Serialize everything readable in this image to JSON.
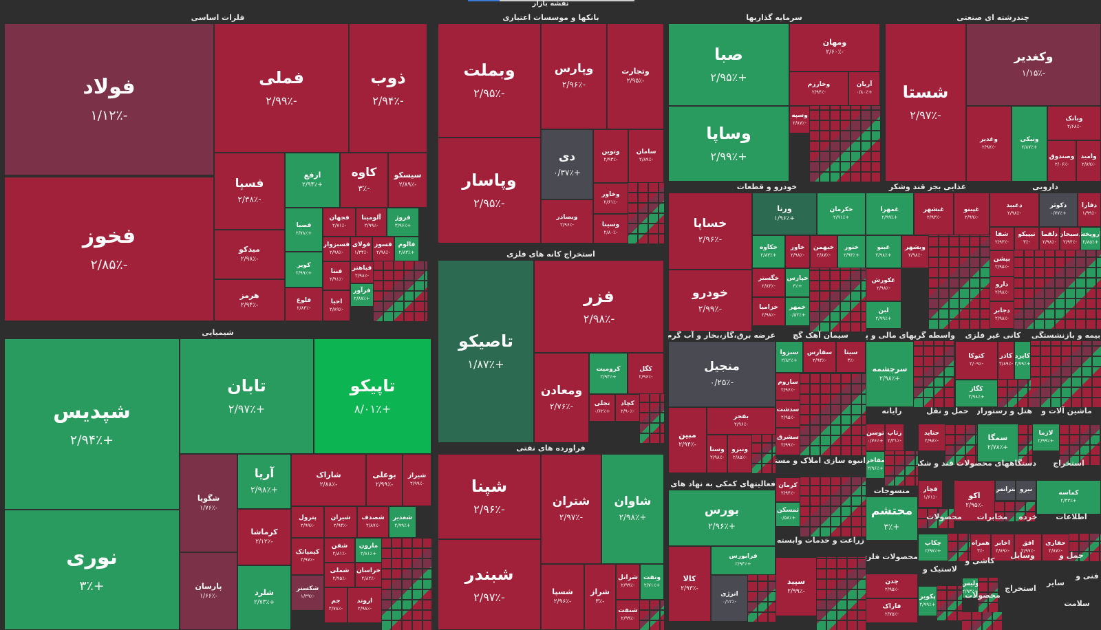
{
  "page_title": "نقشه بازار",
  "colors": {
    "red": "#a2213a",
    "dark_red": "#7b3148",
    "green": "#2a9b5e",
    "bright_green": "#0db552",
    "dark_green": "#2c6b52",
    "gray": "#4a4a52"
  },
  "sectors": {
    "basic_metals": {
      "name": "فلزات اساسی",
      "tiles": [
        {
          "name": "فولاد",
          "pct": "-۱/۱۲٪"
        },
        {
          "name": "فخوز",
          "pct": "-۲/۸۵٪"
        },
        {
          "name": "فملی",
          "pct": "-۲/۹۹٪"
        },
        {
          "name": "ذوب",
          "pct": "-۲/۹۴٪"
        },
        {
          "name": "فسپا",
          "pct": "-۲/۳۸٪"
        },
        {
          "name": "ارفع",
          "pct": "+۲/۹۴٪"
        },
        {
          "name": "کاوه",
          "pct": "-۳٪"
        },
        {
          "name": "سیسکو",
          "pct": "-۲/۸۹٪"
        },
        {
          "name": "میدکو",
          "pct": "-۲/۹۸٪"
        },
        {
          "name": "هرمز",
          "pct": "-۲/۹۴٪"
        },
        {
          "name": "فصبا",
          "pct": "+۲/۷۸٪"
        },
        {
          "name": "فجهان",
          "pct": "-۲/۷۱٪"
        },
        {
          "name": "آلومینا",
          "pct": "-۲/۹۹٪"
        },
        {
          "name": "فروژ",
          "pct": "+۳/۹۶٪"
        },
        {
          "name": "کویر",
          "pct": "+۲/۹۹٪"
        },
        {
          "name": "فسبزوار",
          "pct": "-۲/۹۸٪"
        },
        {
          "name": "فولای",
          "pct": "-۱/۳۴٪"
        },
        {
          "name": "فسوز",
          "pct": "-۲/۹۸٪"
        },
        {
          "name": "فالوم",
          "pct": "+۲/۸۳٪"
        },
        {
          "name": "فباهنر",
          "pct": "-۲/۹۸٪"
        },
        {
          "name": "فنتا",
          "pct": "-۲/۹۱٪"
        },
        {
          "name": "فلوع",
          "pct": "-۲/۸۳٪"
        },
        {
          "name": "احیا",
          "pct": "-۲/۸۹٪"
        },
        {
          "name": "فرآور",
          "pct": "+۲/۸۷٪"
        }
      ]
    },
    "banks": {
      "name": "بانکها و موسسات اعتباری",
      "tiles": [
        {
          "name": "وبملت",
          "pct": "-۲/۹۵٪"
        },
        {
          "name": "وپارس",
          "pct": "-۲/۹۶٪"
        },
        {
          "name": "وتجارت",
          "pct": "-۲/۹۵٪"
        },
        {
          "name": "وپاسار",
          "pct": "-۲/۹۵٪"
        },
        {
          "name": "دی",
          "pct": "+۰/۳۷٪"
        },
        {
          "name": "ونوین",
          "pct": "-۲/۹۳٪"
        },
        {
          "name": "سامان",
          "pct": "-۲/۸۹٪"
        },
        {
          "name": "وخاور",
          "pct": "-۲/۶۱٪"
        },
        {
          "name": "وبصادر",
          "pct": "-۲/۹۶٪"
        },
        {
          "name": "وسینا",
          "pct": "-۲/۸۰٪"
        }
      ]
    },
    "investment": {
      "name": "سرمایه گذاریها",
      "tiles": [
        {
          "name": "صبا",
          "pct": "+۲/۹۵٪"
        },
        {
          "name": "ومهان",
          "pct": "-۲/۶۰٪"
        },
        {
          "name": "وخارزم",
          "pct": "-۲/۹۴٪"
        },
        {
          "name": "آریان",
          "pct": "+۰/۸۰٪"
        },
        {
          "name": "وساپا",
          "pct": "+۲/۹۹٪"
        },
        {
          "name": "وسپه",
          "pct": "-۲/۸۷٪"
        }
      ]
    },
    "multi_industry": {
      "name": "چندرشته ای صنعتی",
      "tiles": [
        {
          "name": "شستا",
          "pct": "-۲/۹۷٪"
        },
        {
          "name": "وکغدیر",
          "pct": "-۱/۱۵٪"
        },
        {
          "name": "وبانک",
          "pct": "-۲/۶۸٪"
        },
        {
          "name": "وغدیر",
          "pct": "-۲/۹۷٪"
        },
        {
          "name": "ونیکی",
          "pct": "+۲/۸۷٪"
        },
        {
          "name": "وصندوق",
          "pct": "-۲/۰۶٪"
        },
        {
          "name": "وامید",
          "pct": "-۲/۸۹٪"
        }
      ]
    },
    "chemical": {
      "name": "شیمیایی",
      "tiles": [
        {
          "name": "شپدیس",
          "pct": "+۲/۹۴٪"
        },
        {
          "name": "تابان",
          "pct": "+۲/۹۷٪"
        },
        {
          "name": "تاپیکو",
          "pct": "+۸/۰۱٪"
        },
        {
          "name": "نوری",
          "pct": "+۳٪"
        },
        {
          "name": "شگویا",
          "pct": "-۱/۷۶٪"
        },
        {
          "name": "آریا",
          "pct": "+۲/۹۸٪"
        },
        {
          "name": "شاراک",
          "pct": "-۲/۸۸٪"
        },
        {
          "name": "بوعلی",
          "pct": "-۲/۹۹٪"
        },
        {
          "name": "شیراز",
          "pct": "-۲/۹۹٪"
        },
        {
          "name": "پترول",
          "pct": "-۲/۹۹٪"
        },
        {
          "name": "شیران",
          "pct": "-۲/۹۴٪"
        },
        {
          "name": "شصدف",
          "pct": "-۲/۸۷٪"
        },
        {
          "name": "شغدیر",
          "pct": "+۲/۹۹٪"
        },
        {
          "name": "کرماشا",
          "pct": "-۲/۱۲٪"
        },
        {
          "name": "شفن",
          "pct": "-۲/۸۱٪"
        },
        {
          "name": "مارون",
          "pct": "+۲/۸۱٪"
        },
        {
          "name": "کیمیاتک",
          "pct": "-۲/۹۷٪"
        },
        {
          "name": "شملی",
          "pct": "-۲/۹۵٪"
        },
        {
          "name": "خراسان",
          "pct": "-۲/۸۲٪"
        },
        {
          "name": "پارسان",
          "pct": "-۱/۶۶٪"
        },
        {
          "name": "شلرد",
          "pct": "+۲/۷۳٪"
        },
        {
          "name": "شکستر",
          "pct": "-۱/۳۹٪"
        },
        {
          "name": "جم",
          "pct": "-۲/۷۸٪"
        },
        {
          "name": "اروند",
          "pct": "-۲/۹۸٪"
        }
      ]
    },
    "metal_mining": {
      "name": "استخراج کانه های فلزی",
      "tiles": [
        {
          "name": "تاصیکو",
          "pct": "+۱/۸۷٪"
        },
        {
          "name": "فزر",
          "pct": "-۲/۹۸٪"
        },
        {
          "name": "ومعادن",
          "pct": "-۲/۷۶٪"
        },
        {
          "name": "کرومیت",
          "pct": "+۲/۹۴٪"
        },
        {
          "name": "کگل",
          "pct": "-۲/۹۶٪"
        },
        {
          "name": "تجلی",
          "pct": "+۰/۶۲٪"
        },
        {
          "name": "کچاد",
          "pct": "-۲/۹۰٪"
        }
      ]
    },
    "oil_products": {
      "name": "فراورده های نفتی",
      "tiles": [
        {
          "name": "شپنا",
          "pct": "-۲/۹۶٪"
        },
        {
          "name": "شتران",
          "pct": "-۲/۹۷٪"
        },
        {
          "name": "شاوان",
          "pct": "+۲/۹۸٪"
        },
        {
          "name": "شبندر",
          "pct": "-۲/۹۷٪"
        },
        {
          "name": "شسپا",
          "pct": "-۲/۹۶٪"
        },
        {
          "name": "شراز",
          "pct": "-۳٪"
        },
        {
          "name": "شرانل",
          "pct": "-۲/۹۹٪"
        },
        {
          "name": "ونفت",
          "pct": "+۲/۷۱٪"
        },
        {
          "name": "شنفت",
          "pct": "-۲/۹۹٪"
        }
      ]
    },
    "auto": {
      "name": "خودرو و قطعات",
      "tiles": [
        {
          "name": "خساپا",
          "pct": "-۲/۹۶٪"
        },
        {
          "name": "ورنا",
          "pct": "+۱/۹۶٪"
        },
        {
          "name": "خکرمان",
          "pct": "+۲/۹۱٪"
        },
        {
          "name": "خودرو",
          "pct": "-۲/۹۹٪"
        },
        {
          "name": "خکاوه",
          "pct": "+۲/۸۳٪"
        },
        {
          "name": "خاور",
          "pct": "-۲/۹۸٪"
        },
        {
          "name": "خبهمن",
          "pct": "-۲/۸۷٪"
        },
        {
          "name": "ختور",
          "pct": "+۲/۹۳٪"
        },
        {
          "name": "خگستر",
          "pct": "-۲/۸۳٪"
        },
        {
          "name": "خپارس",
          "pct": "+۳٪"
        },
        {
          "name": "خزامیا",
          "pct": "-۲/۹۸٪"
        },
        {
          "name": "خمهر",
          "pct": "+۰/۵۲٪"
        }
      ]
    },
    "food": {
      "name": "غذایی بجز قند وشکر",
      "tiles": [
        {
          "name": "غمهرا",
          "pct": "+۲/۹۹٪"
        },
        {
          "name": "غبشهر",
          "pct": "-۲/۹۳٪"
        },
        {
          "name": "غپینو",
          "pct": "-۲/۹۹٪"
        },
        {
          "name": "غبنو",
          "pct": "+۲/۹۸٪"
        },
        {
          "name": "وبشهر",
          "pct": "-۲/۹۸٪"
        },
        {
          "name": "غکورش",
          "pct": "-۲/۹۸٪"
        },
        {
          "name": "لبن",
          "pct": "+۲/۹۹٪"
        }
      ]
    },
    "pharma": {
      "name": "دارویی",
      "tiles": [
        {
          "name": "دعبید",
          "pct": "-۲/۹۸٪"
        },
        {
          "name": "دکوثر",
          "pct": "+۰/۷۷٪"
        },
        {
          "name": "دفارا",
          "pct": "-۱/۹۹٪"
        },
        {
          "name": "شفا",
          "pct": "-۲/۹۳٪"
        },
        {
          "name": "تیپیکو",
          "pct": "-۳٪"
        },
        {
          "name": "دلقما",
          "pct": "-۲/۹۸٪"
        },
        {
          "name": "دسبحان",
          "pct": "-۲/۹۴٪"
        },
        {
          "name": "داروپخش",
          "pct": "+۲/۸۵٪"
        },
        {
          "name": "بپشن",
          "pct": "-۲/۹۵٪"
        },
        {
          "name": "دارو",
          "pct": "-۲/۹۸٪"
        },
        {
          "name": "دجابر",
          "pct": "-۲/۹۸٪"
        }
      ]
    },
    "utilities": {
      "name": "عرضه برق،گاز،بخار و آب گرم",
      "tiles": [
        {
          "name": "منجیل",
          "pct": "-۰/۲۵٪"
        },
        {
          "name": "مبین",
          "pct": "-۲/۹۴٪"
        },
        {
          "name": "بفجر",
          "pct": "-۲/۹۶٪"
        },
        {
          "name": "وسنا",
          "pct": "-۲/۹۸٪"
        },
        {
          "name": "ونیرو",
          "pct": "-۲/۸۵٪"
        }
      ]
    },
    "cement": {
      "name": "سیمان آهک گچ",
      "tiles": [
        {
          "name": "سبزوا",
          "pct": "+۲/۸۲٪"
        },
        {
          "name": "سفارس",
          "pct": "-۲/۹۴٪"
        },
        {
          "name": "سیتا",
          "pct": "-۳٪"
        },
        {
          "name": "ساروم",
          "pct": "-۲/۹۶٪"
        },
        {
          "name": "سدشت",
          "pct": "-۲/۹۵٪"
        },
        {
          "name": "سشرق",
          "pct": "-۲/۹۹٪"
        }
      ]
    },
    "brokerage": {
      "name": "واسطه گریهای مالی و پولی",
      "tiles": [
        {
          "name": "سرچشمه",
          "pct": "+۲/۹۸٪"
        }
      ]
    },
    "non_metal_mining": {
      "name": "کانی غیر فلزی",
      "tiles": [
        {
          "name": "کتوکا",
          "pct": "-۲/۰۹٪"
        },
        {
          "name": "کاذر",
          "pct": "-۲/۸۹٪"
        },
        {
          "name": "کایزد",
          "pct": "+۲/۷۹٪"
        },
        {
          "name": "کگاز",
          "pct": "+۲/۹۸٪"
        }
      ]
    },
    "insurance": {
      "name": "بیمه و بازنشستگی",
      "tiles": []
    },
    "financial_support": {
      "name": "فعالیتهای کمکی به نهاد های مالی",
      "tiles": [
        {
          "name": "بورس",
          "pct": "+۲/۹۶٪"
        },
        {
          "name": "فرابورس",
          "pct": "+۲/۹۴٪"
        },
        {
          "name": "کالا",
          "pct": "-۲/۹۳٪"
        },
        {
          "name": "انرژی",
          "pct": "-۰/۱۲٪"
        }
      ]
    },
    "real_estate": {
      "name": "انبوه سازی املاک و مستغلات",
      "tiles": [
        {
          "name": "کرمان",
          "pct": "-۲/۹۴٪"
        },
        {
          "name": "ثمسکن",
          "pct": "+۰/۵۸٪"
        }
      ]
    },
    "agri": {
      "name": "زراعت و خدمات وابسته",
      "tiles": [
        {
          "name": "سپید",
          "pct": "-۲/۹۹٪"
        }
      ]
    },
    "computer": {
      "name": "رایانه",
      "tiles": [
        {
          "name": "توسن",
          "pct": "+۰/۷۶٪"
        },
        {
          "name": "رتاپ",
          "pct": "-۲/۳۱٪"
        },
        {
          "name": "مفاخر",
          "pct": "+۲/۹۶٪"
        }
      ]
    },
    "transport": {
      "name": "حمل و نقل",
      "tiles": [
        {
          "name": "حتاید",
          "pct": "-۲/۹۷٪"
        }
      ]
    },
    "hotels": {
      "name": "هتل و رستوران",
      "tiles": [
        {
          "name": "سمگا",
          "pct": "+۲/۷۸٪"
        }
      ]
    },
    "machinery": {
      "name": "ماشین آلات و",
      "tiles": [
        {
          "name": "لازما",
          "pct": "+۲/۹۹٪"
        }
      ]
    },
    "textile": {
      "name": "منسوجات",
      "tiles": [
        {
          "name": "محتشم",
          "pct": "+۳٪"
        }
      ]
    },
    "sugar": {
      "name": "قند و شکر",
      "tiles": [
        {
          "name": "قچار",
          "pct": "-۱/۶۱٪"
        }
      ]
    },
    "products1": {
      "name": "محصولات",
      "tiles": [
        {
          "name": "اکو",
          "pct": "-۲/۹۵٪"
        }
      ]
    },
    "devices": {
      "name": "دستگاههای",
      "tiles": [
        {
          "name": "بترانس",
          "pct": ""
        },
        {
          "name": "نیرو",
          "pct": ""
        }
      ]
    },
    "extraction": {
      "name": "استخراج",
      "tiles": [
        {
          "name": "کماسه",
          "pct": "+۲/۳۳٪"
        }
      ]
    },
    "products2": {
      "name": "محصولات",
      "tiles": [
        {
          "name": "چکاپ",
          "pct": "+۲/۹۷٪"
        }
      ]
    },
    "telecom": {
      "name": "مخابرات",
      "tiles": [
        {
          "name": "همراه",
          "pct": "-۳٪"
        },
        {
          "name": "اخابر",
          "pct": "-۲/۸۹٪"
        }
      ]
    },
    "retail": {
      "name": "خرده",
      "tiles": [
        {
          "name": "افق",
          "pct": "-۲/۹۷٪"
        }
      ]
    },
    "info": {
      "name": "اطلاعات",
      "tiles": [
        {
          "name": "حفاری",
          "pct": "-۲/۸۷٪"
        }
      ]
    },
    "extraction2": {
      "name": "استخراج",
      "tiles": []
    },
    "metal_products": {
      "name": "محصولات فلزی",
      "tiles": [
        {
          "name": "چدن",
          "pct": "-۲/۹۵٪"
        },
        {
          "name": "فاراک",
          "pct": "-۲/۷۵٪"
        }
      ]
    },
    "rubber": {
      "name": "لاستیک و",
      "tiles": [
        {
          "name": "پکویر",
          "pct": "+۲/۹۹٪"
        }
      ]
    },
    "tiles": {
      "name": "کاشی و",
      "tiles": [
        {
          "name": "ولیس",
          "pct": "+۲/۹۳٪"
        }
      ]
    },
    "transport2": {
      "name": "حمل و",
      "tiles": []
    },
    "products3": {
      "name": "محصولات",
      "tiles": []
    },
    "technical": {
      "name": "فنی و",
      "tiles": []
    },
    "health": {
      "name": "سلامت",
      "tiles": []
    },
    "products4": {
      "name": "محصولات",
      "tiles": []
    },
    "misc": {
      "name": "سایر",
      "tiles": []
    },
    "extraction3": {
      "name": "استخراج",
      "tiles": []
    },
    "leasing": {
      "name": "وسایل",
      "tiles": []
    }
  }
}
